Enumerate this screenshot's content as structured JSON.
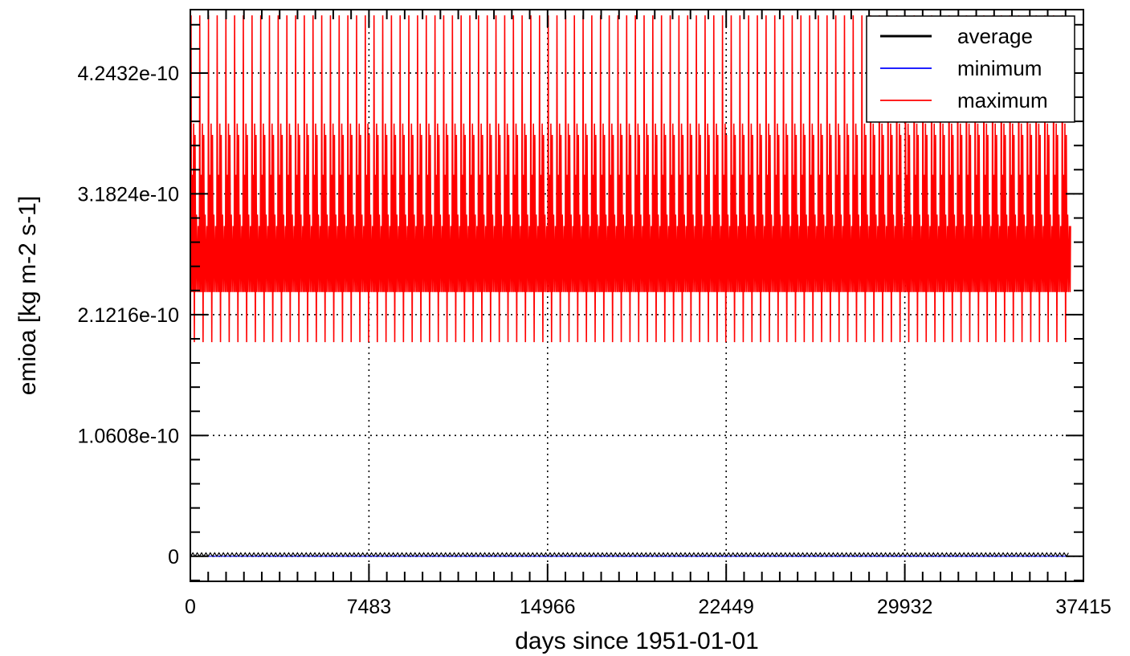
{
  "chart_data": {
    "type": "line",
    "xlabel": "days since 1951-01-01",
    "ylabel": "emioa [kg m-2 s-1]",
    "xlim": [
      0,
      37415
    ],
    "ylim": [
      -2.2e-11,
      4.8e-10
    ],
    "x_ticks": [
      0,
      7483,
      14966,
      22449,
      29932,
      37415
    ],
    "x_tick_labels": [
      "0",
      "7483",
      "14966",
      "22449",
      "29932",
      "37415"
    ],
    "y_ticks": [
      0,
      1.0608e-10,
      2.1216e-10,
      3.1824e-10,
      4.2432e-10
    ],
    "y_tick_labels": [
      "0",
      "1.0608e-10",
      "2.1216e-10",
      "3.1824e-10",
      "4.2432e-10"
    ],
    "grid": true,
    "legend_position": "top-right",
    "series": [
      {
        "name": "average",
        "color": "#000000",
        "description_values": {
          "x_start": 15,
          "x_end": 36875,
          "period_days": 365,
          "typical": 0.0,
          "range": [
            0,
            3e-12
          ]
        }
      },
      {
        "name": "minimum",
        "color": "#0000ff",
        "description_values": {
          "x_start": 15,
          "x_end": 36875,
          "typical": 0.0
        }
      },
      {
        "name": "maximum",
        "color": "#ff0000",
        "description_values": {
          "x_start": 15,
          "x_end": 36875,
          "period_days": 365,
          "peak": 4.75e-10,
          "secondary_peaks": [
            3.8e-10,
            3.7e-10,
            3.35e-10,
            3e-10,
            2.9e-10
          ],
          "troughs": [
            1.88e-10,
            2.32e-10
          ],
          "range": [
            1.88e-10,
            4.75e-10
          ]
        }
      }
    ]
  }
}
